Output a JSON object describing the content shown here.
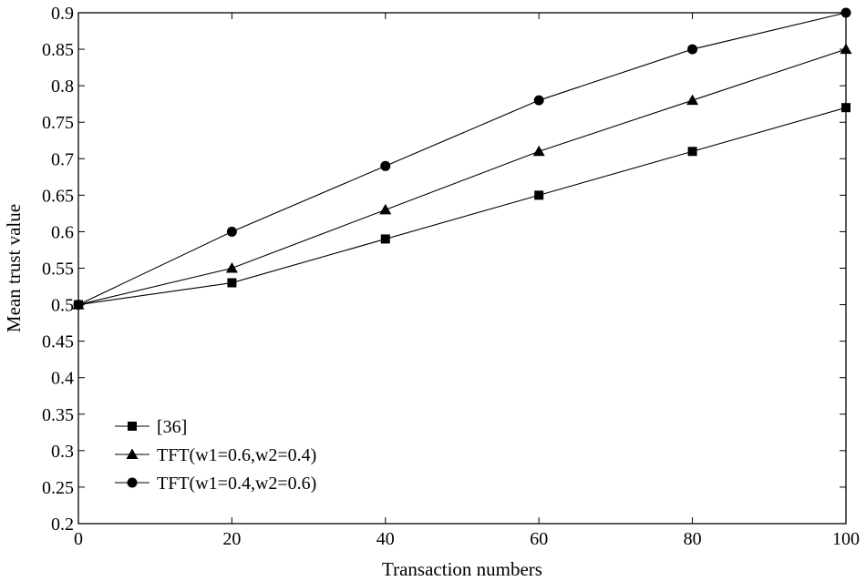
{
  "chart_data": {
    "type": "line",
    "title": "",
    "xlabel": "Transaction numbers",
    "ylabel": "Mean trust value",
    "xlim": [
      0,
      100
    ],
    "ylim": [
      0.2,
      0.9
    ],
    "x_ticks": [
      0,
      20,
      40,
      60,
      80,
      100
    ],
    "x_tick_labels": [
      "0",
      "20",
      "40",
      "60",
      "80",
      "100"
    ],
    "y_ticks": [
      0.2,
      0.25,
      0.3,
      0.35,
      0.4,
      0.45,
      0.5,
      0.55,
      0.6,
      0.65,
      0.7,
      0.75,
      0.8,
      0.85,
      0.9
    ],
    "y_tick_labels": [
      "0.2",
      "0.25",
      "0.3",
      "0.35",
      "0.4",
      "0.45",
      "0.5",
      "0.55",
      "0.6",
      "0.65",
      "0.7",
      "0.75",
      "0.8",
      "0.85",
      "0.9"
    ],
    "grid": false,
    "legend_position": "bottom-left",
    "x": [
      0,
      20,
      40,
      60,
      80,
      100
    ],
    "series": [
      {
        "name": "[36]",
        "marker": "square",
        "values": [
          0.5,
          0.53,
          0.59,
          0.65,
          0.71,
          0.77
        ]
      },
      {
        "name": "TFT(w1=0.6,w2=0.4)",
        "marker": "triangle",
        "values": [
          0.5,
          0.55,
          0.63,
          0.71,
          0.78,
          0.85
        ]
      },
      {
        "name": "TFT(w1=0.4,w2=0.6)",
        "marker": "circle",
        "values": [
          0.5,
          0.6,
          0.69,
          0.78,
          0.85,
          0.9
        ]
      }
    ]
  }
}
